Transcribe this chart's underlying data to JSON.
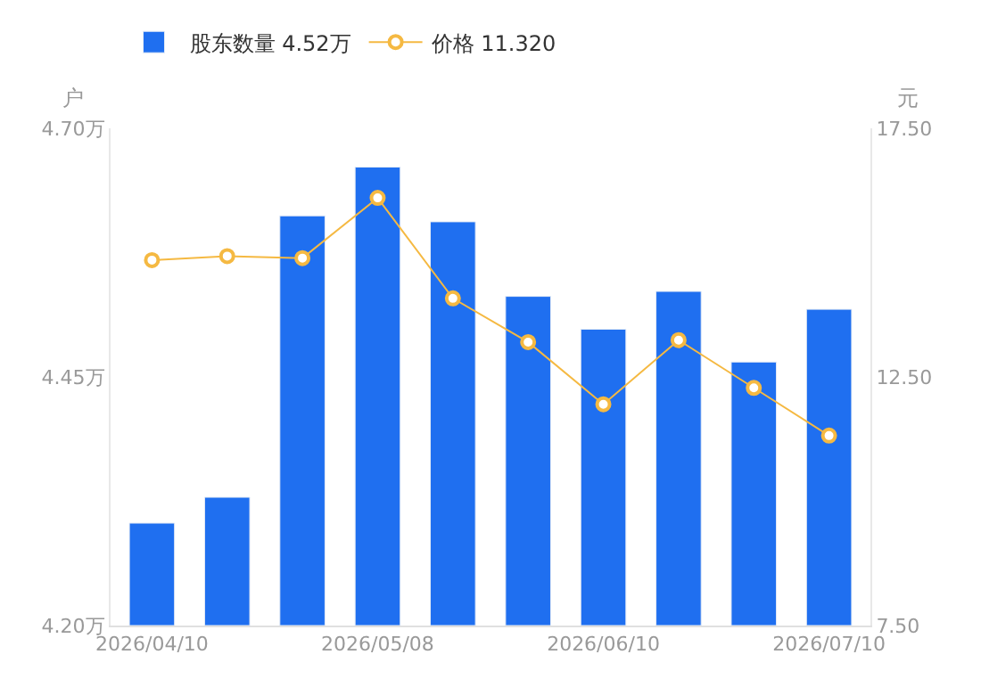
{
  "chart_data": {
    "type": "bar",
    "categories": [
      "2026/04/10",
      null,
      null,
      "2026/05/08",
      null,
      null,
      "2026/06/10",
      null,
      null,
      "2026/07/10"
    ],
    "series": [
      {
        "name": "股东数量 4.52万",
        "color": "#1f6ff0",
        "values": [
          4.303,
          4.329,
          4.612,
          4.661,
          4.606,
          4.531,
          4.498,
          4.536,
          4.465,
          4.518
        ]
      },
      {
        "name": "价格 11.320",
        "type": "line",
        "axis": "y2",
        "color": "#f5b942",
        "marker": "circle",
        "values": [
          14.85,
          14.93,
          14.89,
          16.1,
          14.08,
          13.2,
          11.95,
          13.24,
          12.28,
          11.32
        ]
      }
    ],
    "ylabel": "户",
    "y2label": "元",
    "ylim": [
      4.2,
      4.7
    ],
    "yticks": [
      {
        "value": 4.2,
        "label": "4.20万"
      },
      {
        "value": 4.45,
        "label": "4.45万"
      },
      {
        "value": 4.7,
        "label": "4.70万"
      }
    ],
    "y2lim": [
      7.5,
      17.5
    ],
    "y2ticks": [
      {
        "value": 7.5,
        "label": "7.50"
      },
      {
        "value": 12.5,
        "label": "12.50"
      },
      {
        "value": 17.5,
        "label": "17.50"
      }
    ],
    "legend": "top left"
  }
}
